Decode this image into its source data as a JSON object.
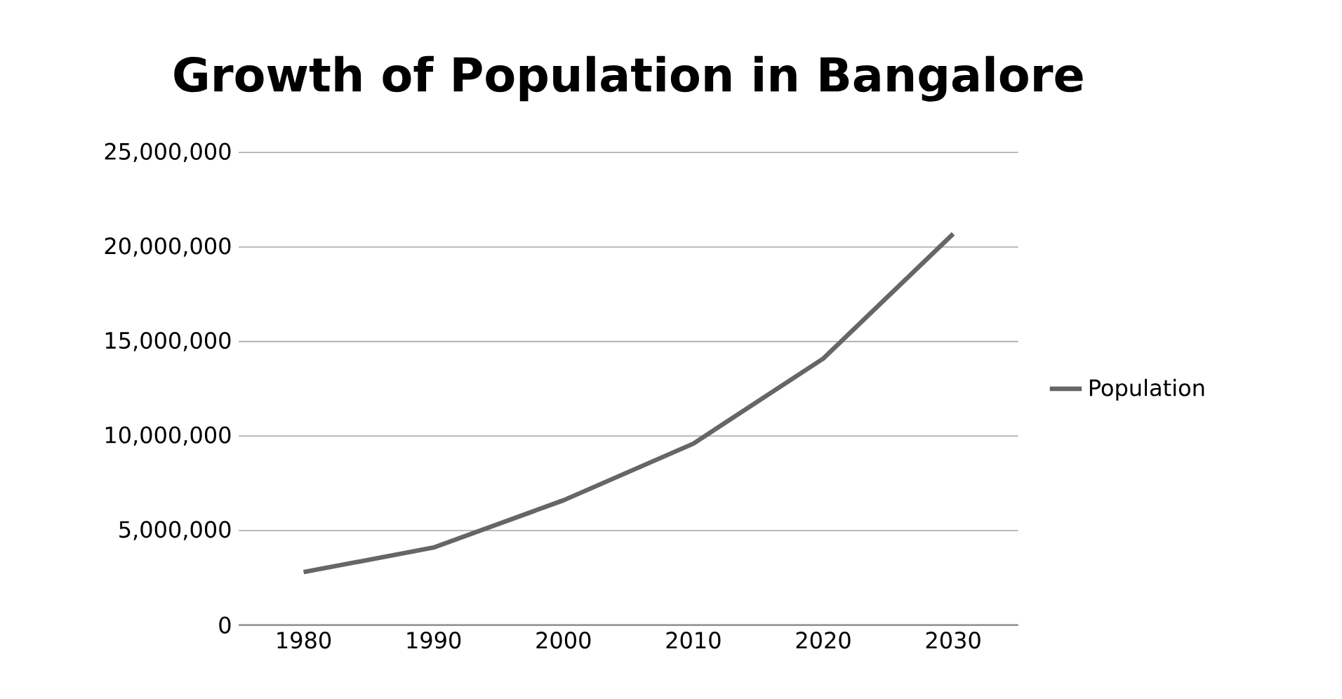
{
  "chart_data": {
    "type": "line",
    "title": "Growth of Population in Bangalore",
    "categories": [
      "1980",
      "1990",
      "2000",
      "2010",
      "2020",
      "2030"
    ],
    "series": [
      {
        "name": "Population",
        "color": "#666666",
        "values": [
          2800000,
          4100000,
          6600000,
          9600000,
          14100000,
          20700000
        ]
      }
    ],
    "ylim": [
      0,
      25000000
    ],
    "yticks": [
      {
        "value": 0,
        "label": "0"
      },
      {
        "value": 5000000,
        "label": "5,000,000"
      },
      {
        "value": 10000000,
        "label": "10,000,000"
      },
      {
        "value": 15000000,
        "label": "15,000,000"
      },
      {
        "value": 20000000,
        "label": "20,000,000"
      },
      {
        "value": 25000000,
        "label": "25,000,000"
      }
    ],
    "grid": "y",
    "legend": "right",
    "marker": "none",
    "line_style": "solid"
  }
}
